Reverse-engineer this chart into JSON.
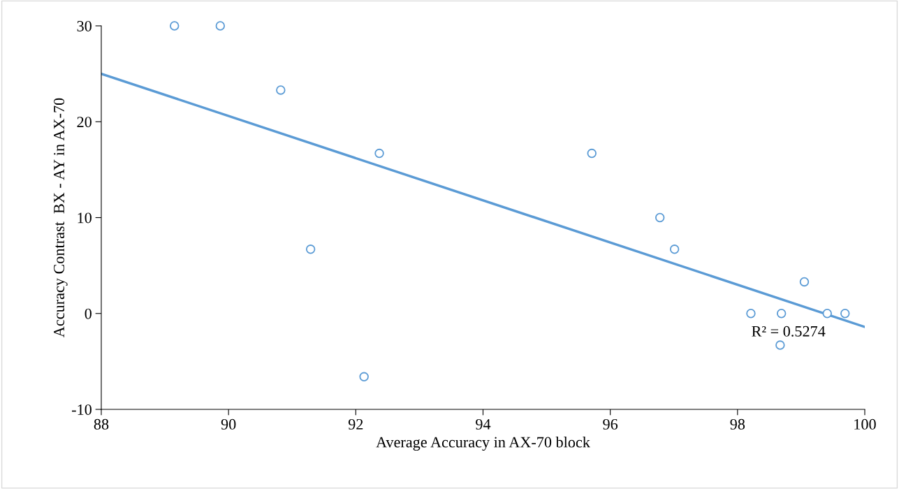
{
  "chart_data": {
    "type": "scatter",
    "xlabel": "Average Accuracy in AX-70 block",
    "ylabel": "Accuracy Contrast  BX - AY in AX-70",
    "xlim": [
      88,
      100
    ],
    "xticks": [
      88,
      90,
      92,
      94,
      96,
      98,
      100
    ],
    "ylim": [
      -10,
      30
    ],
    "yticks": [
      -10,
      0,
      10,
      20,
      30
    ],
    "grid": false,
    "legend": false,
    "marker": "circle",
    "series": [
      {
        "color": "#5b9bd5",
        "x": [
          89.15,
          89.87,
          90.82,
          91.29,
          92.37,
          92.13,
          95.71,
          96.78,
          97.01,
          98.21,
          98.69,
          98.67,
          99.05,
          99.41,
          99.69
        ],
        "values": [
          30,
          30,
          23.3,
          6.7,
          16.7,
          -6.6,
          16.7,
          10,
          6.7,
          0,
          0,
          -3.3,
          3.3,
          0,
          0
        ]
      },
      {
        "type": "line",
        "color": "#5b9bd5",
        "marker": "none",
        "x": [
          88,
          100
        ],
        "values": [
          25,
          -1.4
        ]
      }
    ],
    "annotations": [
      "R² = 0.5274"
    ]
  }
}
